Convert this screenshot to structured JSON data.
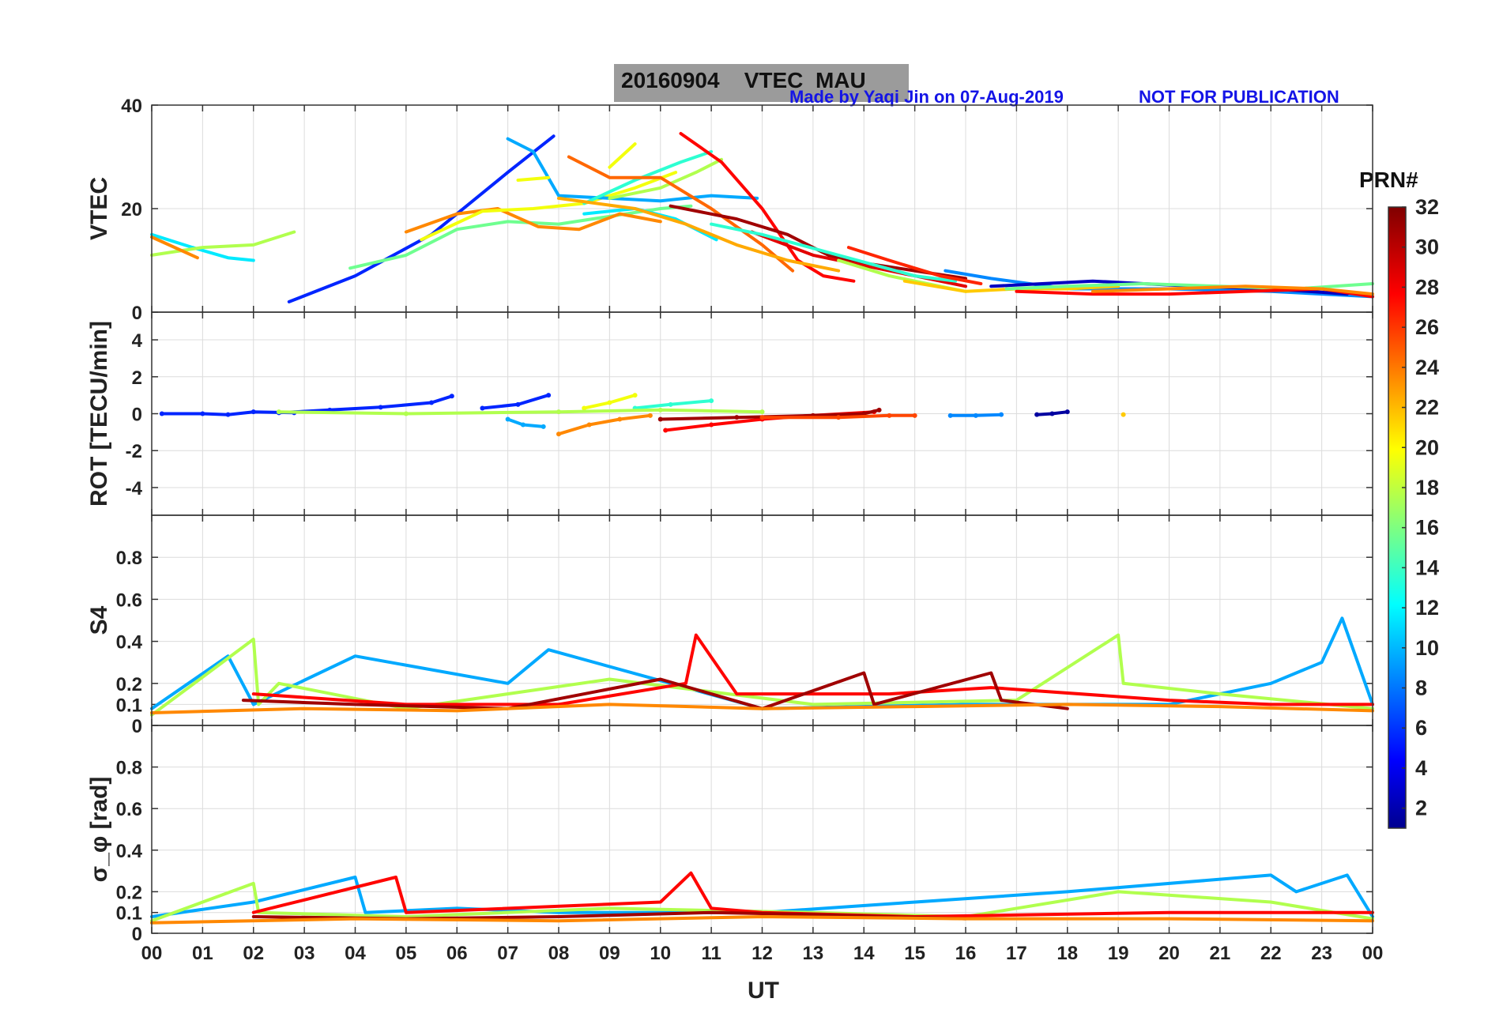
{
  "figure": {
    "title_date": "20160904",
    "title_main": "VTEC  MAU",
    "credit": "Made by Yaqi Jin on 07-Aug-2019",
    "notice": "NOT FOR PUBLICATION",
    "xlabel": "UT",
    "colorbar_label": "PRN#"
  },
  "chart_data": [
    {
      "type": "line",
      "panel": "VTEC",
      "ylabel": "VTEC",
      "xlim": [
        0,
        24
      ],
      "ylim": [
        0,
        40
      ],
      "yticks": [
        "0",
        "20",
        "40"
      ],
      "grid": true,
      "series": [
        {
          "prn": 6,
          "x": [
            2.7,
            4.0,
            5.5,
            7.0,
            7.9
          ],
          "y": [
            2,
            7,
            15,
            27,
            34
          ]
        },
        {
          "prn": 12,
          "x": [
            0,
            0.8,
            1.5,
            2.0
          ],
          "y": [
            15,
            12.5,
            10.5,
            10
          ]
        },
        {
          "prn": 18,
          "x": [
            0,
            1.0,
            2.0,
            2.8
          ],
          "y": [
            11,
            12.5,
            13,
            15.5
          ]
        },
        {
          "prn": 24,
          "x": [
            0,
            0.9
          ],
          "y": [
            14.5,
            10.5
          ]
        },
        {
          "prn": 16,
          "x": [
            3.9,
            5.0,
            6.0,
            7.0,
            8.0,
            9.0,
            10.0,
            10.6
          ],
          "y": [
            8.5,
            11,
            16,
            17.5,
            17,
            18.5,
            20,
            20.5
          ]
        },
        {
          "prn": 24,
          "x": [
            5.0,
            6.0,
            6.8,
            7.6,
            8.4,
            9.2,
            10.0
          ],
          "y": [
            15.5,
            19,
            20,
            16.5,
            16,
            19,
            17.5
          ]
        },
        {
          "prn": 20,
          "x": [
            5.3,
            6.5,
            7.5,
            8.5,
            9.5,
            10.3
          ],
          "y": [
            14,
            19.5,
            20,
            21,
            24,
            27
          ]
        },
        {
          "prn": 10,
          "x": [
            7.0,
            7.5,
            8.0,
            9.0,
            10.0,
            11.0,
            11.9
          ],
          "y": [
            33.5,
            31,
            22.5,
            22,
            21.5,
            22.5,
            22
          ]
        },
        {
          "prn": 12,
          "x": [
            8.5,
            9.5,
            10.3,
            11.1
          ],
          "y": [
            19,
            20,
            18,
            14
          ]
        },
        {
          "prn": 14,
          "x": [
            8.5,
            9.5,
            10.4,
            11.0
          ],
          "y": [
            21,
            25.5,
            29,
            31
          ]
        },
        {
          "prn": 18,
          "x": [
            9.0,
            10.0,
            10.7,
            11.2
          ],
          "y": [
            22,
            24,
            27,
            29.5
          ]
        },
        {
          "prn": 20,
          "x": [
            9.0,
            9.5
          ],
          "y": [
            28,
            32.5
          ]
        },
        {
          "prn": 20,
          "x": [
            7.2,
            7.8
          ],
          "y": [
            25.5,
            26
          ]
        },
        {
          "prn": 25,
          "x": [
            8.2,
            9.0,
            10.0,
            11.0,
            12.0,
            12.6
          ],
          "y": [
            30,
            26,
            26,
            20,
            13,
            8
          ]
        },
        {
          "prn": 28,
          "x": [
            10.4,
            11.2,
            12.0,
            12.7,
            13.2,
            13.8
          ],
          "y": [
            34.5,
            29,
            20,
            10,
            7,
            6
          ]
        },
        {
          "prn": 23,
          "x": [
            8.0,
            9.5,
            10.5,
            11.5,
            12.5,
            13.5
          ],
          "y": [
            22,
            20,
            17,
            13,
            10,
            8
          ]
        },
        {
          "prn": 31,
          "x": [
            10.2,
            11.5,
            12.5,
            13.3,
            14.0,
            15.0,
            16.0
          ],
          "y": [
            20.5,
            18,
            15,
            11,
            9.5,
            8,
            6.5
          ]
        },
        {
          "prn": 29,
          "x": [
            11.8,
            13.0,
            14.0,
            15.0,
            16.0
          ],
          "y": [
            15.5,
            11,
            9,
            7,
            5
          ]
        },
        {
          "prn": 14,
          "x": [
            11.0,
            12.0,
            13.5,
            15.0,
            15.8
          ],
          "y": [
            17,
            15,
            11,
            7,
            6
          ]
        },
        {
          "prn": 18,
          "x": [
            13.5,
            14.5,
            15.5,
            16.0
          ],
          "y": [
            10,
            7,
            5,
            4
          ]
        },
        {
          "prn": 27,
          "x": [
            13.7,
            14.5,
            15.5,
            16.3
          ],
          "y": [
            12.5,
            10,
            7,
            5.5
          ]
        },
        {
          "prn": 9,
          "x": [
            15.6,
            16.5,
            18.0,
            20.0,
            22.0,
            24.0
          ],
          "y": [
            8,
            6.5,
            4.5,
            4.5,
            4,
            3
          ]
        },
        {
          "prn": 22,
          "x": [
            14.8,
            16.0,
            17.0,
            18.0,
            19.0
          ],
          "y": [
            6,
            4,
            4.5,
            4.5,
            5
          ]
        },
        {
          "prn": 3,
          "x": [
            16.5,
            17.5,
            18.5,
            19.5,
            20.5,
            22.0,
            23.5
          ],
          "y": [
            5,
            5.5,
            6,
            5.5,
            5,
            4.5,
            3.5
          ]
        },
        {
          "prn": 16,
          "x": [
            16.8,
            18.0,
            19.5,
            21.0,
            22.5,
            24.0
          ],
          "y": [
            4.5,
            5,
            5.5,
            5,
            4.5,
            5.5
          ]
        },
        {
          "prn": 28,
          "x": [
            17.0,
            18.5,
            20.0,
            21.5,
            23.0,
            24.0
          ],
          "y": [
            4,
            3.5,
            3.5,
            4,
            4.5,
            3
          ]
        },
        {
          "prn": 24,
          "x": [
            18.5,
            20.0,
            21.5,
            23.0,
            24.0
          ],
          "y": [
            4,
            4.5,
            5,
            4.5,
            3.5
          ]
        }
      ]
    },
    {
      "type": "scatter",
      "panel": "ROT",
      "ylabel": "ROT [TECU/min]",
      "xlim": [
        0,
        24
      ],
      "ylim": [
        -5.5,
        5.5
      ],
      "yticks": [
        "-4",
        "-2",
        "0",
        "2",
        "4"
      ],
      "grid": true,
      "series": [
        {
          "prn": 6,
          "x": [
            0.2,
            1.0,
            1.5,
            2.0,
            2.8
          ],
          "y": [
            0,
            0,
            -0.05,
            0.1,
            0.05
          ]
        },
        {
          "prn": 6,
          "x": [
            2.5,
            3.5,
            4.5,
            5.5,
            5.9
          ],
          "y": [
            0.05,
            0.2,
            0.35,
            0.6,
            0.95
          ]
        },
        {
          "prn": 10,
          "x": [
            7.0,
            7.3,
            7.7
          ],
          "y": [
            -0.3,
            -0.6,
            -0.7
          ]
        },
        {
          "prn": 6,
          "x": [
            6.5,
            7.2,
            7.8
          ],
          "y": [
            0.3,
            0.5,
            1.0
          ]
        },
        {
          "prn": 20,
          "x": [
            8.5,
            9.0,
            9.5
          ],
          "y": [
            0.3,
            0.6,
            1.0
          ]
        },
        {
          "prn": 14,
          "x": [
            9.5,
            10.2,
            11.0
          ],
          "y": [
            0.3,
            0.5,
            0.7
          ]
        },
        {
          "prn": 18,
          "x": [
            2.5,
            5.0,
            8.0,
            10.0,
            12.0
          ],
          "y": [
            0.1,
            0.0,
            0.1,
            0.2,
            0.1
          ]
        },
        {
          "prn": 24,
          "x": [
            8.0,
            8.6,
            9.2,
            9.8
          ],
          "y": [
            -1.1,
            -0.6,
            -0.3,
            -0.1
          ]
        },
        {
          "prn": 28,
          "x": [
            10.1,
            11.0,
            12.0,
            13.0,
            14.2
          ],
          "y": [
            -0.9,
            -0.6,
            -0.3,
            -0.1,
            0.1
          ]
        },
        {
          "prn": 31,
          "x": [
            10.0,
            11.5,
            13.0,
            14.0,
            14.3
          ],
          "y": [
            -0.3,
            -0.2,
            -0.1,
            0.0,
            0.2
          ]
        },
        {
          "prn": 26,
          "x": [
            12.0,
            13.5,
            14.5,
            15.0
          ],
          "y": [
            -0.2,
            -0.2,
            -0.1,
            -0.1
          ]
        },
        {
          "prn": 9,
          "x": [
            15.7,
            16.2,
            16.7
          ],
          "y": [
            -0.1,
            -0.1,
            -0.05
          ]
        },
        {
          "prn": 2,
          "x": [
            17.4,
            17.7,
            18.0
          ],
          "y": [
            -0.05,
            0.0,
            0.1
          ]
        },
        {
          "prn": 22,
          "x": [
            19.1
          ],
          "y": [
            -0.05
          ]
        }
      ]
    },
    {
      "type": "line",
      "panel": "S4",
      "ylabel": "S4",
      "xlim": [
        0,
        24
      ],
      "ylim": [
        0,
        1
      ],
      "yticks": [
        "0",
        "0.1",
        "0.2",
        "0.4",
        "0.6",
        "0.8"
      ],
      "grid": true,
      "series": [
        {
          "prn": 10,
          "x": [
            0,
            1.5,
            2.0,
            4.0,
            7.0,
            7.8,
            12.0,
            16.0,
            20.0,
            22.0,
            23.0,
            23.4,
            24.0
          ],
          "y": [
            0.08,
            0.33,
            0.1,
            0.33,
            0.2,
            0.36,
            0.08,
            0.1,
            0.1,
            0.2,
            0.3,
            0.51,
            0.1
          ]
        },
        {
          "prn": 18,
          "x": [
            0,
            2.0,
            2.1,
            2.5,
            5.0,
            9.0,
            13.0,
            17.0,
            19.0,
            19.1,
            21.0,
            24.0
          ],
          "y": [
            0.05,
            0.41,
            0.1,
            0.2,
            0.08,
            0.22,
            0.1,
            0.12,
            0.43,
            0.2,
            0.15,
            0.08
          ]
        },
        {
          "prn": 28,
          "x": [
            2.0,
            5.0,
            8.0,
            10.5,
            10.7,
            11.5,
            14.5,
            16.5,
            20.0,
            22.0,
            24.0
          ],
          "y": [
            0.15,
            0.1,
            0.1,
            0.2,
            0.43,
            0.15,
            0.15,
            0.18,
            0.12,
            0.1,
            0.1
          ]
        },
        {
          "prn": 31,
          "x": [
            1.8,
            4.0,
            7.0,
            10.0,
            12.0,
            14.0,
            14.2,
            16.5,
            16.7,
            18.0
          ],
          "y": [
            0.12,
            0.1,
            0.08,
            0.22,
            0.08,
            0.25,
            0.1,
            0.25,
            0.12,
            0.08
          ]
        },
        {
          "prn": 24,
          "x": [
            0,
            3.0,
            6.0,
            9.0,
            12.0,
            15.0,
            18.0,
            21.0,
            24.0
          ],
          "y": [
            0.06,
            0.08,
            0.07,
            0.1,
            0.08,
            0.09,
            0.1,
            0.09,
            0.07
          ]
        }
      ]
    },
    {
      "type": "line",
      "panel": "sigma_phi",
      "ylabel": "σ_φ [rad]",
      "xlim": [
        0,
        24
      ],
      "ylim": [
        0,
        1
      ],
      "yticks": [
        "0",
        "0.1",
        "0.2",
        "0.4",
        "0.6",
        "0.8"
      ],
      "xticks": [
        "00",
        "01",
        "02",
        "03",
        "04",
        "05",
        "06",
        "07",
        "08",
        "09",
        "10",
        "11",
        "12",
        "13",
        "14",
        "15",
        "16",
        "17",
        "18",
        "19",
        "20",
        "21",
        "22",
        "23",
        "00"
      ],
      "grid": true,
      "series": [
        {
          "prn": 10,
          "x": [
            0,
            2.0,
            4.0,
            4.2,
            6.0,
            8.0,
            12.0,
            18.0,
            22.0,
            22.5,
            23.5,
            24.0
          ],
          "y": [
            0.08,
            0.15,
            0.27,
            0.1,
            0.12,
            0.1,
            0.1,
            0.2,
            0.28,
            0.2,
            0.28,
            0.08
          ]
        },
        {
          "prn": 18,
          "x": [
            0,
            2.0,
            2.1,
            5.0,
            9.0,
            13.0,
            16.0,
            19.0,
            22.0,
            24.0
          ],
          "y": [
            0.06,
            0.24,
            0.1,
            0.08,
            0.12,
            0.1,
            0.08,
            0.2,
            0.15,
            0.07
          ]
        },
        {
          "prn": 28,
          "x": [
            2.0,
            4.8,
            5.0,
            10.0,
            10.6,
            11.0,
            12.0,
            15.0,
            20.0,
            24.0
          ],
          "y": [
            0.1,
            0.27,
            0.1,
            0.15,
            0.29,
            0.12,
            0.1,
            0.08,
            0.1,
            0.1
          ]
        },
        {
          "prn": 31,
          "x": [
            2.0,
            5.0,
            8.0,
            11.0,
            13.0,
            16.0
          ],
          "y": [
            0.08,
            0.07,
            0.08,
            0.1,
            0.09,
            0.07
          ]
        },
        {
          "prn": 24,
          "x": [
            0,
            4.0,
            8.0,
            12.0,
            16.0,
            20.0,
            24.0
          ],
          "y": [
            0.05,
            0.07,
            0.06,
            0.08,
            0.07,
            0.07,
            0.06
          ]
        }
      ]
    }
  ],
  "colorbar": {
    "min": 1,
    "max": 32,
    "ticks": [
      "2",
      "4",
      "6",
      "8",
      "10",
      "12",
      "14",
      "16",
      "18",
      "20",
      "22",
      "24",
      "26",
      "28",
      "30",
      "32"
    ],
    "colormap": "jet"
  }
}
